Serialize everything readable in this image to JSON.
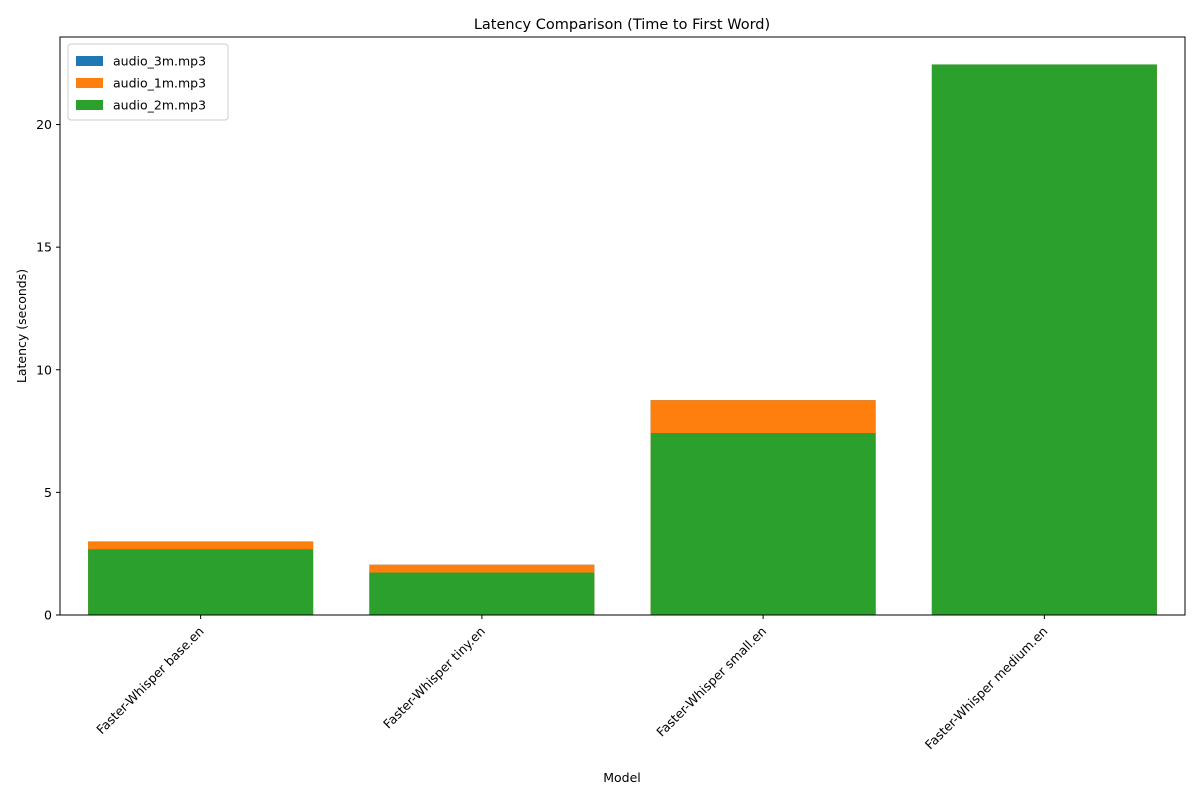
{
  "chart_data": {
    "type": "bar",
    "title": "Latency Comparison (Time to First Word)",
    "xlabel": "Model",
    "ylabel": "Latency (seconds)",
    "categories": [
      "Faster-Whisper base.en",
      "Faster-Whisper tiny.en",
      "Faster-Whisper small.en",
      "Faster-Whisper medium.en"
    ],
    "series": [
      {
        "name": "audio_3m.mp3",
        "color": "#1f77b4",
        "values": [
          3.0,
          2.05,
          8.76,
          22.45
        ]
      },
      {
        "name": "audio_1m.mp3",
        "color": "#ff7f0e",
        "values": [
          3.0,
          2.05,
          8.76,
          22.45
        ]
      },
      {
        "name": "audio_2m.mp3",
        "color": "#2ca02c",
        "values": [
          2.68,
          1.73,
          7.42,
          22.45
        ]
      }
    ],
    "ylim": [
      0,
      23.57
    ],
    "yticks": [
      0,
      5,
      10,
      15,
      20
    ],
    "ytick_labels": [
      "0",
      "5",
      "10",
      "15",
      "20"
    ],
    "grid": false,
    "legend_position": "top-left",
    "overlay": true
  }
}
